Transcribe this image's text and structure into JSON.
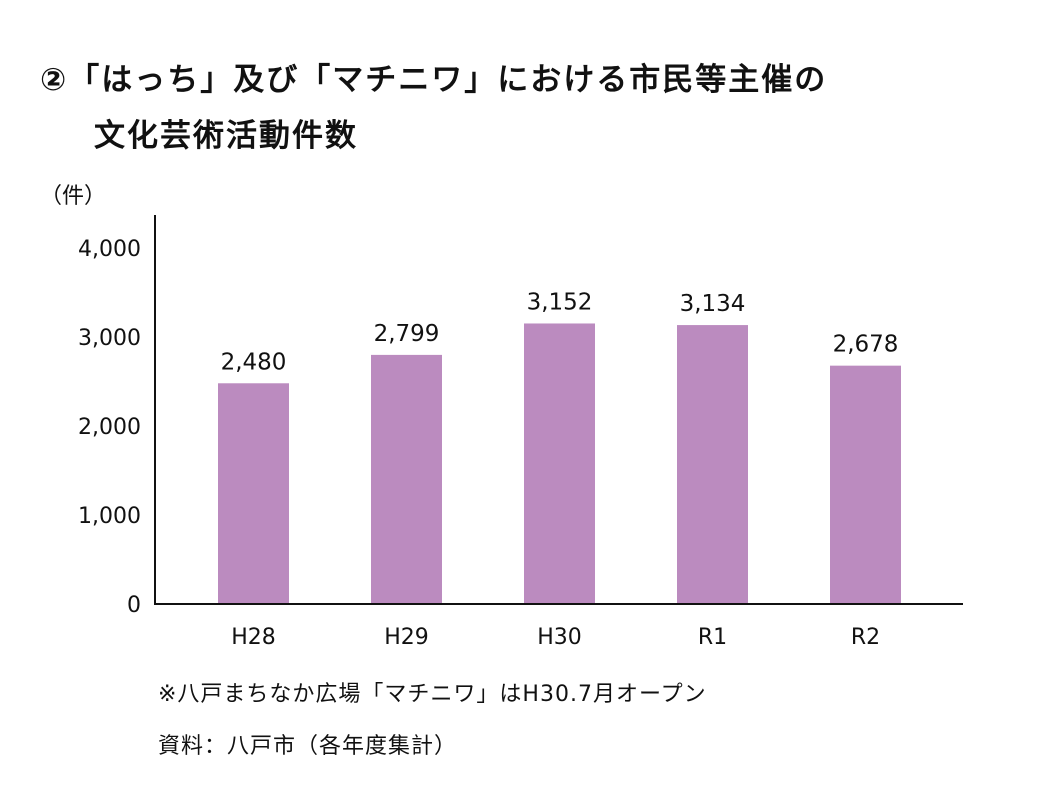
{
  "chart_data": {
    "type": "bar",
    "title_line1": "②「はっち」及び「マチニワ」における市民等主催の",
    "title_line2": "文化芸術活動件数",
    "ylabel": "（件）",
    "xlabel": "",
    "categories": [
      "H28",
      "H29",
      "H30",
      "R1",
      "R2"
    ],
    "values": [
      2480,
      2799,
      3152,
      3134,
      2678
    ],
    "value_labels": [
      "2,480",
      "2,799",
      "3,152",
      "3,134",
      "2,678"
    ],
    "ylim": [
      0,
      4000
    ],
    "yticks": [
      0,
      1000,
      2000,
      3000,
      4000
    ],
    "ytick_labels": [
      "0",
      "1,000",
      "2,000",
      "3,000",
      "4,000"
    ],
    "grid": false,
    "bar_color": "#bb8bbf",
    "notes": [
      "※八戸まちなか広場「マチニワ」はH30.7月オープン",
      "資料：八戸市（各年度集計）"
    ]
  }
}
